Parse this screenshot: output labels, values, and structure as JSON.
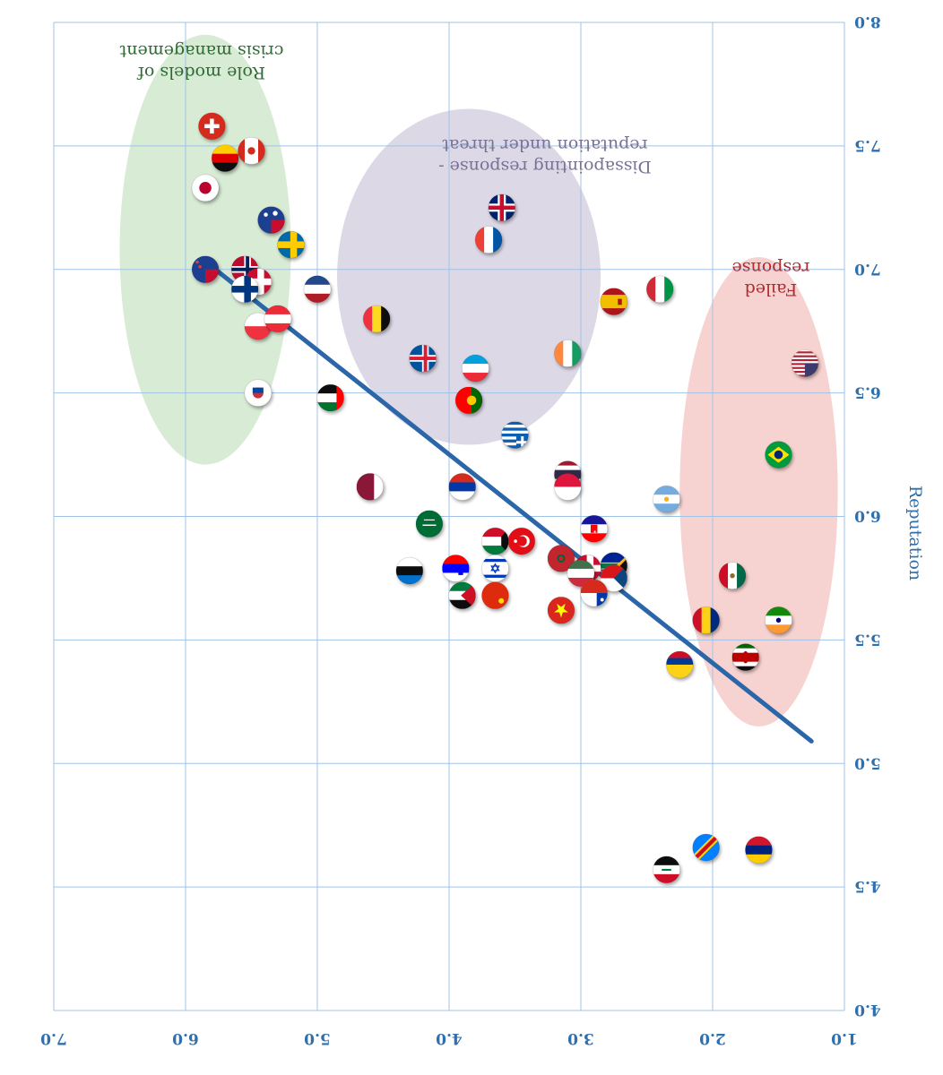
{
  "chart_data": {
    "type": "scatter",
    "mirrored": true,
    "xlim": [
      1.0,
      7.0
    ],
    "ylim": [
      4.0,
      8.0
    ],
    "x_ticks": [
      1.0,
      2.0,
      3.0,
      4.0,
      5.0,
      6.0,
      7.0
    ],
    "y_ticks": [
      4.0,
      4.5,
      5.0,
      5.5,
      6.0,
      6.5,
      7.0,
      7.5,
      8.0
    ],
    "x_tick_labels": [
      "1.0",
      "2.0",
      "3.0",
      "4.0",
      "5.0",
      "6.0",
      "7.0"
    ],
    "y_tick_labels": [
      "4.0",
      "4.5",
      "5.0",
      "5.5",
      "6.0",
      "6.5",
      "7.0",
      "7.5",
      "8.0"
    ],
    "xlabel": "",
    "ylabel": "Reputation",
    "grid": true,
    "colors": {
      "axis": "#2e6fad",
      "grid": "#9fc3e6",
      "trend": "#2a66a8",
      "zone_green": "#d8ebd5",
      "zone_purple": "#dcd8e6",
      "zone_red": "#f6d3d1",
      "text_green": "#2e6b34",
      "text_purple": "#7a7294",
      "text_red": "#b02a30"
    },
    "trend_line": {
      "from": [
        5.75,
        6.99
      ],
      "to": [
        1.25,
        5.09
      ]
    },
    "zones": [
      {
        "name": "green",
        "center": [
          5.85,
          7.08
        ],
        "rx": 0.65,
        "ry": 0.87,
        "label_lines": [
          "Role models of",
          "crisis management"
        ]
      },
      {
        "name": "purple",
        "center": [
          3.85,
          6.97
        ],
        "rx": 1.0,
        "ry": 0.68,
        "label_lines": [
          "Dissapointing response -",
          "reputation under threat"
        ]
      },
      {
        "name": "red",
        "center": [
          1.65,
          6.1
        ],
        "rx": 0.6,
        "ry": 0.95,
        "label_lines": [
          "Failed",
          "response"
        ]
      }
    ],
    "points": [
      {
        "flag": "switzerland",
        "x": 5.8,
        "y": 7.58
      },
      {
        "flag": "canada",
        "x": 5.5,
        "y": 7.48
      },
      {
        "flag": "germany",
        "x": 5.7,
        "y": 7.45
      },
      {
        "flag": "japan",
        "x": 5.85,
        "y": 7.33
      },
      {
        "flag": "australia",
        "x": 5.35,
        "y": 7.2
      },
      {
        "flag": "sweden",
        "x": 5.2,
        "y": 7.1
      },
      {
        "flag": "new-zealand",
        "x": 5.85,
        "y": 7.0
      },
      {
        "flag": "norway",
        "x": 5.55,
        "y": 7.0
      },
      {
        "flag": "denmark",
        "x": 5.45,
        "y": 6.95
      },
      {
        "flag": "finland",
        "x": 5.55,
        "y": 6.92
      },
      {
        "flag": "netherlands",
        "x": 5.0,
        "y": 6.92
      },
      {
        "flag": "singapore",
        "x": 5.45,
        "y": 6.77
      },
      {
        "flag": "austria",
        "x": 5.3,
        "y": 6.8
      },
      {
        "flag": "belgium",
        "x": 4.55,
        "y": 6.8
      },
      {
        "flag": "iceland",
        "x": 4.2,
        "y": 6.64
      },
      {
        "flag": "luxembourg",
        "x": 3.8,
        "y": 6.6
      },
      {
        "flag": "south-korea",
        "x": 5.45,
        "y": 6.5
      },
      {
        "flag": "uae",
        "x": 4.9,
        "y": 6.48
      },
      {
        "flag": "portugal",
        "x": 3.85,
        "y": 6.47
      },
      {
        "flag": "uk",
        "x": 3.6,
        "y": 7.25
      },
      {
        "flag": "france",
        "x": 3.7,
        "y": 7.12
      },
      {
        "flag": "italy",
        "x": 2.4,
        "y": 6.92
      },
      {
        "flag": "spain",
        "x": 2.75,
        "y": 6.87
      },
      {
        "flag": "ireland",
        "x": 3.1,
        "y": 6.66
      },
      {
        "flag": "usa",
        "x": 1.3,
        "y": 6.62
      },
      {
        "flag": "brazil",
        "x": 1.5,
        "y": 6.25
      },
      {
        "flag": "greece",
        "x": 3.5,
        "y": 6.33
      },
      {
        "flag": "thailand",
        "x": 3.1,
        "y": 6.17
      },
      {
        "flag": "poland",
        "x": 3.1,
        "y": 6.12
      },
      {
        "flag": "qatar",
        "x": 4.6,
        "y": 6.12
      },
      {
        "flag": "russia",
        "x": 3.9,
        "y": 6.12
      },
      {
        "flag": "argentina",
        "x": 2.35,
        "y": 6.07
      },
      {
        "flag": "saudi-arabia",
        "x": 4.15,
        "y": 5.97
      },
      {
        "flag": "croatia",
        "x": 2.9,
        "y": 5.95
      },
      {
        "flag": "kuwait",
        "x": 3.65,
        "y": 5.9
      },
      {
        "flag": "turkey",
        "x": 3.45,
        "y": 5.9
      },
      {
        "flag": "morocco",
        "x": 3.15,
        "y": 5.83
      },
      {
        "flag": "south-africa",
        "x": 2.75,
        "y": 5.8
      },
      {
        "flag": "denmark-b",
        "x": 2.95,
        "y": 5.79
      },
      {
        "flag": "israel",
        "x": 3.65,
        "y": 5.79
      },
      {
        "flag": "slovenia",
        "x": 3.95,
        "y": 5.79
      },
      {
        "flag": "estonia",
        "x": 4.3,
        "y": 5.78
      },
      {
        "flag": "hungary",
        "x": 3.0,
        "y": 5.77
      },
      {
        "flag": "czechia",
        "x": 2.75,
        "y": 5.75
      },
      {
        "flag": "mexico",
        "x": 1.85,
        "y": 5.76
      },
      {
        "flag": "jordan",
        "x": 3.9,
        "y": 5.68
      },
      {
        "flag": "china",
        "x": 3.65,
        "y": 5.68
      },
      {
        "flag": "chile",
        "x": 2.9,
        "y": 5.69
      },
      {
        "flag": "vietnam",
        "x": 3.15,
        "y": 5.62
      },
      {
        "flag": "romania",
        "x": 2.05,
        "y": 5.58
      },
      {
        "flag": "india",
        "x": 1.5,
        "y": 5.58
      },
      {
        "flag": "colombia",
        "x": 2.25,
        "y": 5.4
      },
      {
        "flag": "kenya",
        "x": 1.75,
        "y": 5.43
      },
      {
        "flag": "dr-congo",
        "x": 2.05,
        "y": 4.66
      },
      {
        "flag": "venezuela",
        "x": 1.65,
        "y": 4.65
      },
      {
        "flag": "iraq",
        "x": 2.35,
        "y": 4.57
      }
    ]
  }
}
